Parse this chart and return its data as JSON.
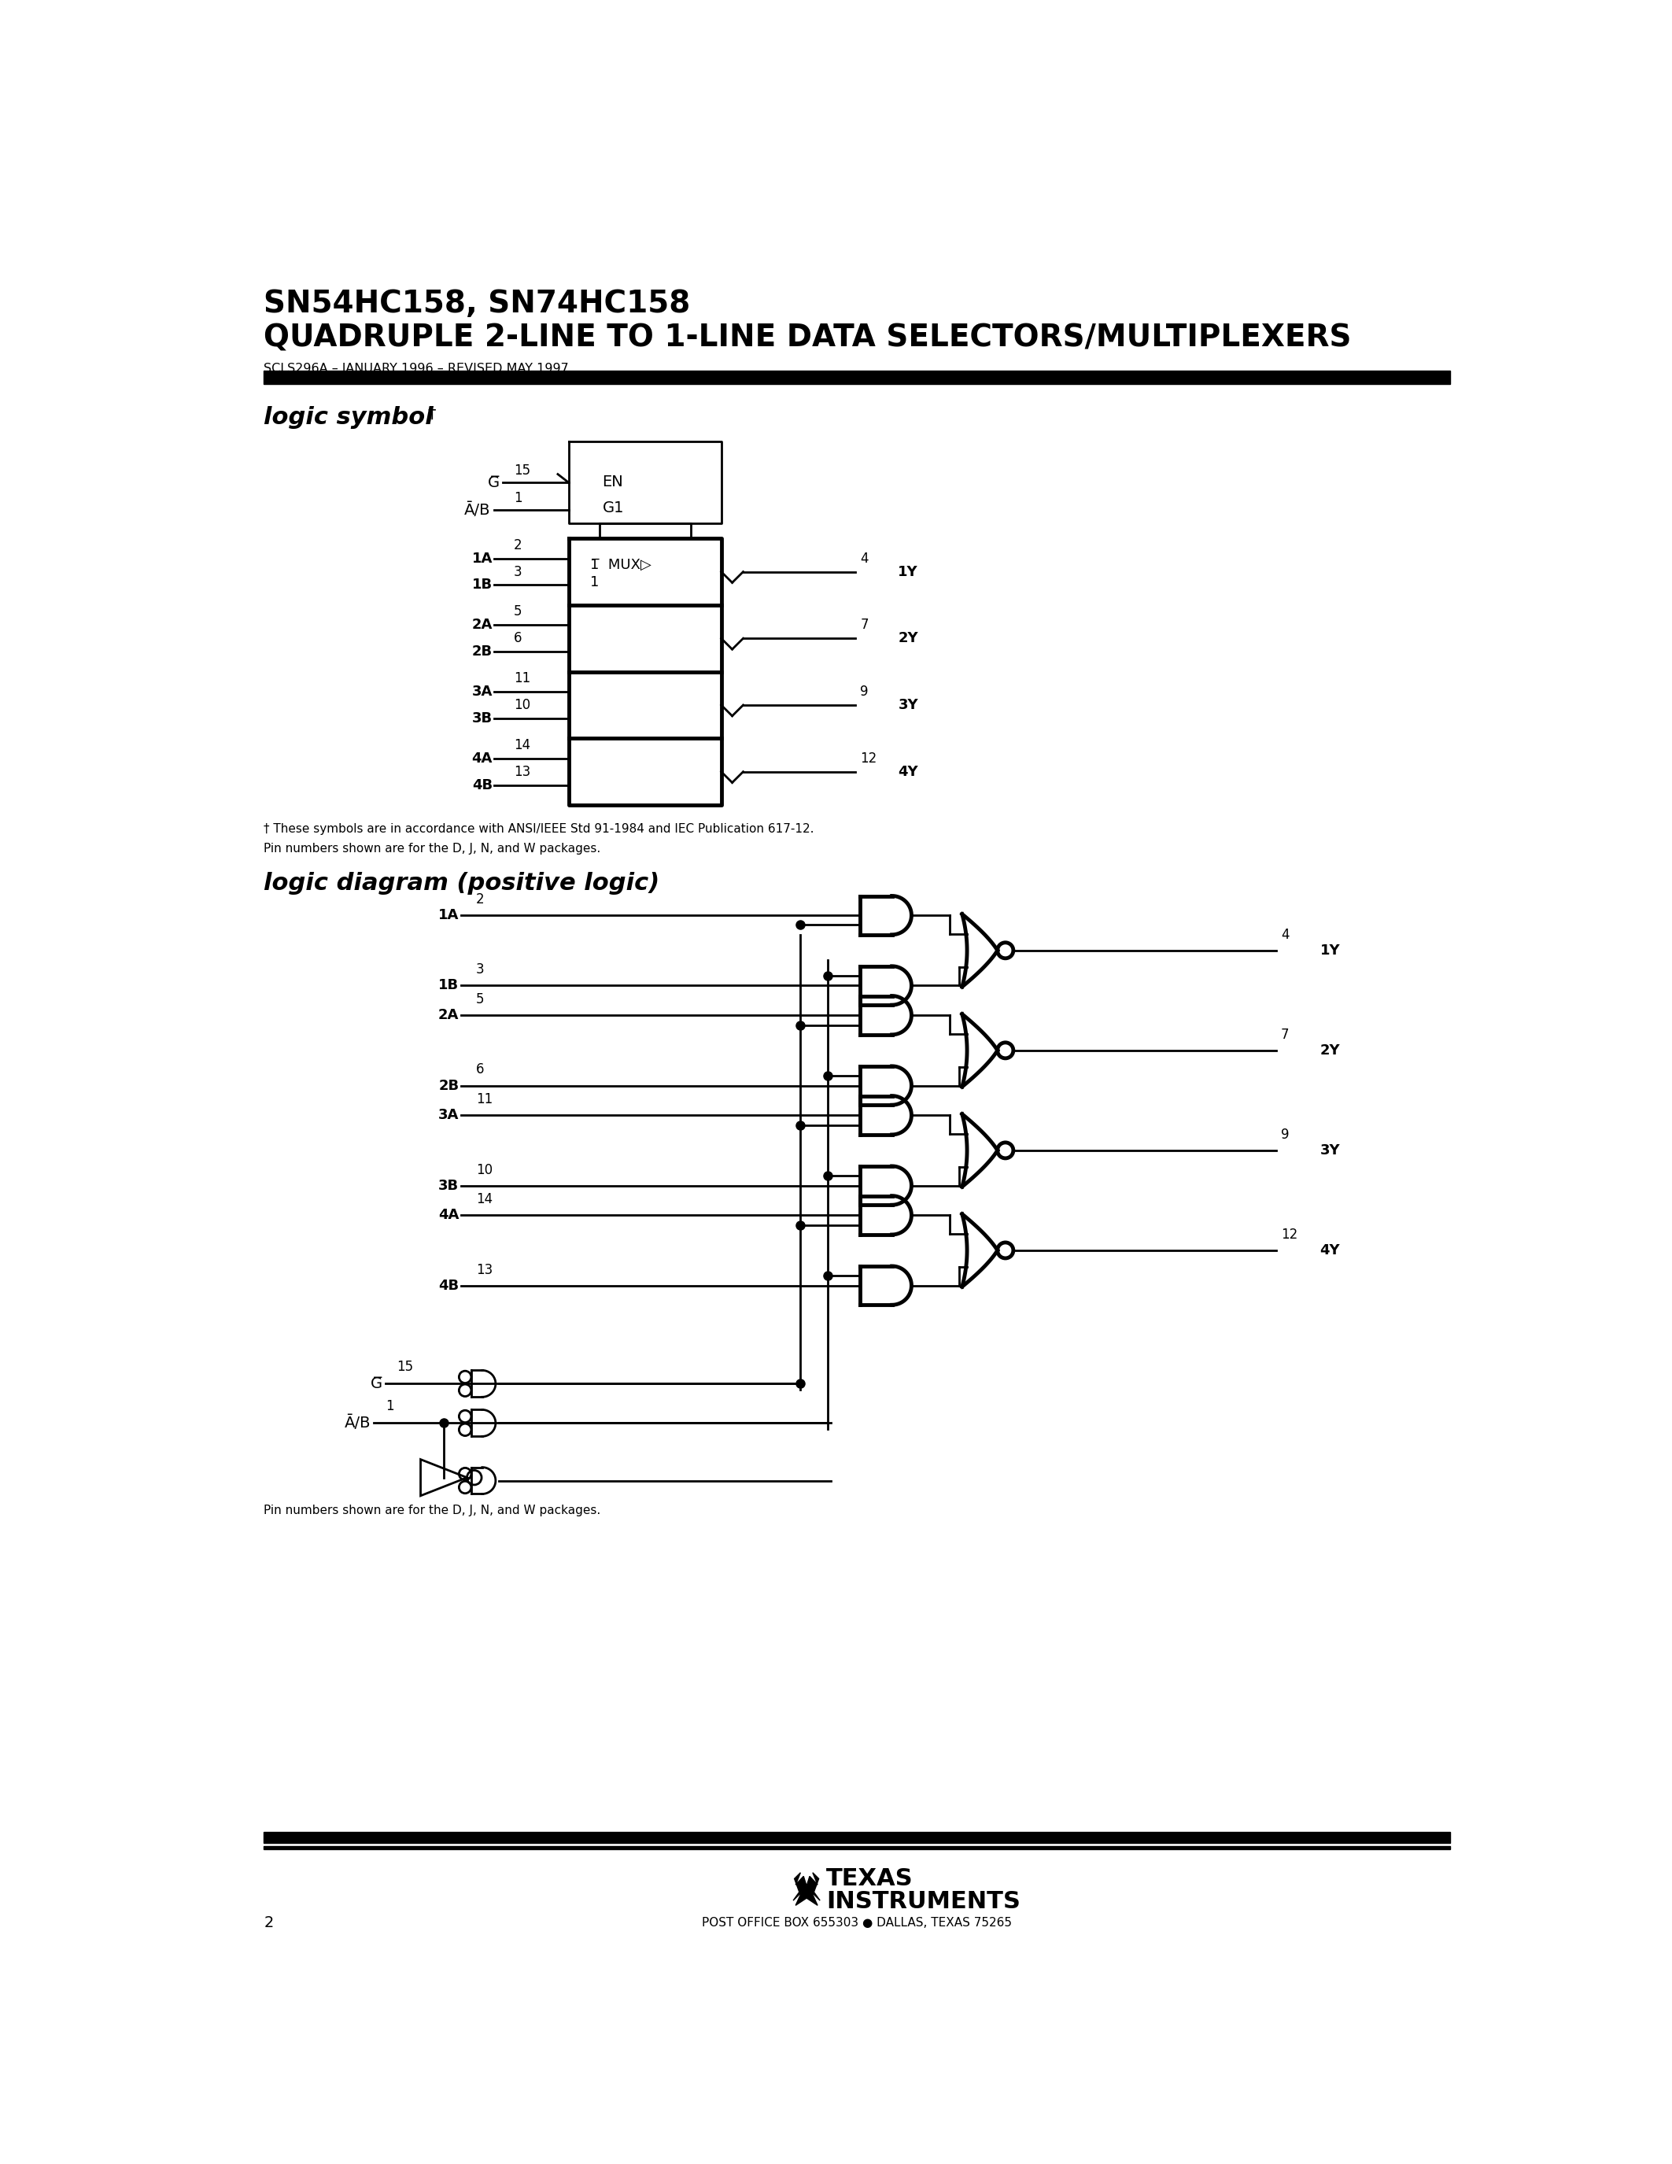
{
  "title_line1": "SN54HC158, SN74HC158",
  "title_line2": "QUADRUPLE 2-LINE TO 1-LINE DATA SELECTORS/MULTIPLEXERS",
  "subtitle": "SCLS296A – JANUARY 1996 – REVISED MAY 1997",
  "section1_main": "logic symbol",
  "section1_sup": "†",
  "section2": "logic diagram (positive logic)",
  "footnote1": "† These symbols are in accordance with ANSI/IEEE Std 91-1984 and IEC Publication 617-12.",
  "footnote2": "Pin numbers shown are for the D, J, N, and W packages.",
  "footnote3": "Pin numbers shown are for the D, J, N, and W packages.",
  "page_num": "2",
  "footer_addr": "POST OFFICE BOX 655303 ● DALLAS, TEXAS 75265",
  "bg_color": "#ffffff"
}
